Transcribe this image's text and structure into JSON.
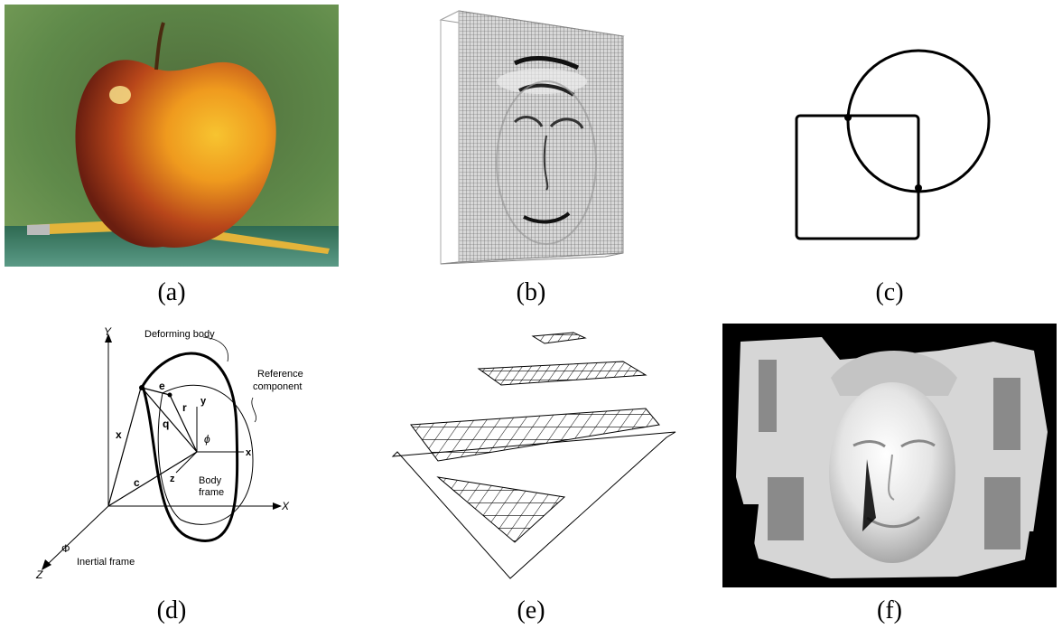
{
  "captions": [
    "(a)",
    "(b)",
    "(c)",
    "(d)",
    "(e)",
    "(f)"
  ],
  "panels": {
    "a": {
      "subject": "apple-photo"
    },
    "b": {
      "subject": "deformable-mesh-face"
    },
    "c": {
      "subject": "square-and-circle-contours"
    },
    "d": {
      "labels": {
        "deforming_body": "Deforming body",
        "reference_component_1": "Reference",
        "reference_component_2": "component",
        "body_frame_1": "Body",
        "body_frame_2": "frame",
        "inertial_frame": "Inertial frame",
        "axis_Y": "Y",
        "axis_X": "X",
        "axis_Z": "Z",
        "axis_y": "y",
        "axis_x": "x",
        "axis_z": "z",
        "vec_x": "x",
        "vec_c": "c",
        "vec_q": "q",
        "vec_r": "r",
        "vec_e": "e",
        "phi": "ϕ",
        "Phi": "Φ"
      }
    },
    "e": {
      "subject": "multiresolution-grid-pyramid"
    },
    "f": {
      "subject": "carved-stone-face-reconstruction"
    }
  }
}
